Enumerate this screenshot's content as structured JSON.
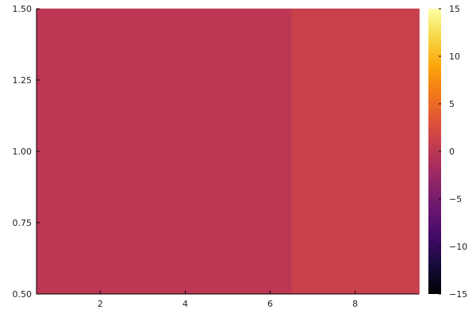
{
  "chart_data": {
    "type": "heatmap",
    "x": [
      1,
      2,
      3,
      4,
      5,
      6,
      7,
      8,
      9
    ],
    "y": [
      1
    ],
    "z": [
      [
        0,
        0,
        0,
        0,
        0,
        0,
        1,
        1,
        1
      ]
    ],
    "xlim": [
      0.5,
      9.5
    ],
    "ylim": [
      0.5,
      1.5
    ],
    "x_ticks": [
      2,
      4,
      6,
      8
    ],
    "x_tick_labels": [
      "2",
      "4",
      "6",
      "8"
    ],
    "y_ticks": [
      0.5,
      0.75,
      1.0,
      1.25,
      1.5
    ],
    "y_tick_labels": [
      "0.50",
      "0.75",
      "1.00",
      "1.25",
      "1.50"
    ],
    "colorbar": {
      "colormap": "inferno",
      "range": [
        -15,
        15
      ],
      "ticks": [
        -15,
        -10,
        -5,
        0,
        5,
        10,
        15
      ],
      "tick_labels": [
        "−15",
        "−10",
        "−5",
        "0",
        "5",
        "10",
        "15"
      ]
    },
    "grid": false,
    "legend": "none"
  }
}
